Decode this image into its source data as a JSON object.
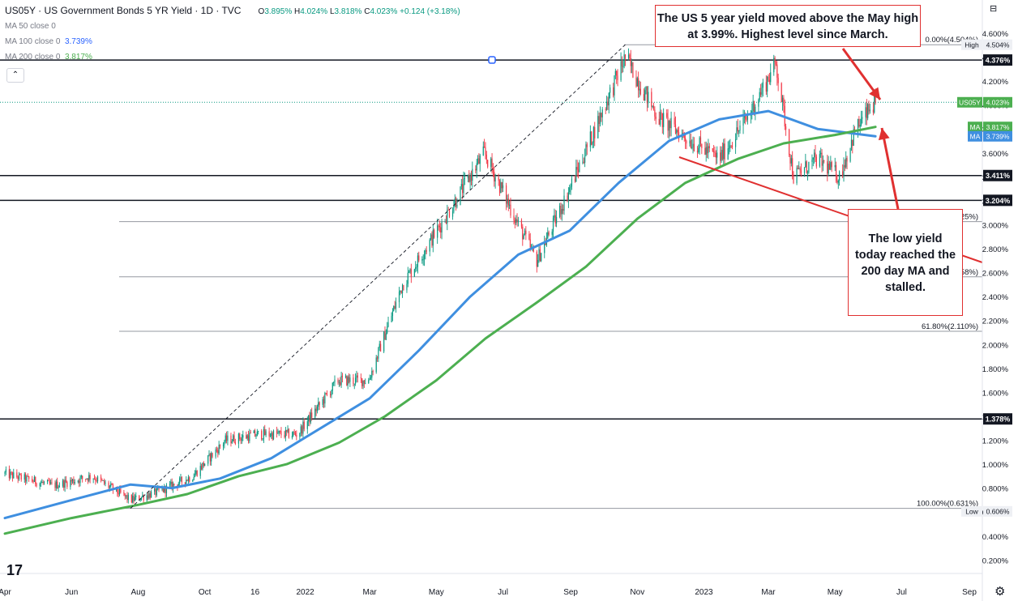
{
  "header": {
    "symbol_title": "US05Y · US Government Bonds 5 YR Yield · 1D · TVC",
    "ohlc": [
      {
        "key": "O",
        "value": "3.895%"
      },
      {
        "key": "H",
        "value": "4.024%"
      },
      {
        "key": "L",
        "value": "3.818%"
      },
      {
        "key": "C",
        "value": "4.023%"
      },
      {
        "key": "",
        "value": "+0.124 (+3.18%)"
      }
    ],
    "ma50_label": "MA 50 close 0",
    "ma100_label": "MA 100 close 0",
    "ma100_value": "3.739%",
    "ma200_label": "MA 200 close 0",
    "ma200_value": "3.817%"
  },
  "annotations": {
    "top_note": "The US 5 year yield moved above the May high at 3.99%. Highest level since March.",
    "bottom_note": "The low yield today reached the 200 day MA and stalled."
  },
  "colors": {
    "up": "#089981",
    "down": "#f23645",
    "ma100": "#3f8fe0",
    "ma200": "#4caf50",
    "annotation": "#e03030"
  },
  "icons": [
    "tradingview-logo-icon",
    "settings-gear-icon",
    "collapse-chevron-icon",
    "chart-menu-icon"
  ],
  "chart_data": {
    "type": "candlestick",
    "title": "US05Y · US Government Bonds 5 YR Yield · 1D · TVC",
    "ylim": [
      0.05,
      4.65
    ],
    "y_ticks": [
      "0.200%",
      "0.400%",
      "0.600%",
      "0.800%",
      "1.000%",
      "1.200%",
      "1.400%",
      "1.600%",
      "1.800%",
      "2.000%",
      "2.200%",
      "2.400%",
      "2.600%",
      "2.800%",
      "3.000%",
      "3.200%",
      "3.400%",
      "3.600%",
      "3.800%",
      "4.000%",
      "4.200%",
      "4.400%",
      "4.600%"
    ],
    "x_ticks": [
      "Apr",
      "Jun",
      "Aug",
      "Oct",
      "16",
      "2022",
      "Mar",
      "May",
      "Jul",
      "Sep",
      "Nov",
      "2023",
      "Mar",
      "May",
      "Jul",
      "Sep"
    ],
    "price_path": [
      {
        "date": "2021-04-01",
        "y": 0.92
      },
      {
        "date": "2021-05-15",
        "y": 0.82
      },
      {
        "date": "2021-06-20",
        "y": 0.9
      },
      {
        "date": "2021-07-25",
        "y": 0.7
      },
      {
        "date": "2021-08-20",
        "y": 0.77
      },
      {
        "date": "2021-09-20",
        "y": 0.9
      },
      {
        "date": "2021-10-20",
        "y": 1.2
      },
      {
        "date": "2021-11-20",
        "y": 1.25
      },
      {
        "date": "2021-12-25",
        "y": 1.25
      },
      {
        "date": "2022-01-31",
        "y": 1.7
      },
      {
        "date": "2022-02-28",
        "y": 1.7
      },
      {
        "date": "2022-03-31",
        "y": 2.5
      },
      {
        "date": "2022-05-05",
        "y": 3.0
      },
      {
        "date": "2022-06-14",
        "y": 3.6
      },
      {
        "date": "2022-07-15",
        "y": 3.0
      },
      {
        "date": "2022-08-01",
        "y": 2.7
      },
      {
        "date": "2022-08-31",
        "y": 3.3
      },
      {
        "date": "2022-10-21",
        "y": 4.4
      },
      {
        "date": "2022-11-20",
        "y": 3.9
      },
      {
        "date": "2022-12-20",
        "y": 3.7
      },
      {
        "date": "2023-01-15",
        "y": 3.55
      },
      {
        "date": "2023-02-10",
        "y": 3.9
      },
      {
        "date": "2023-03-08",
        "y": 4.35
      },
      {
        "date": "2023-03-24",
        "y": 3.4
      },
      {
        "date": "2023-04-15",
        "y": 3.55
      },
      {
        "date": "2023-05-05",
        "y": 3.4
      },
      {
        "date": "2023-05-20",
        "y": 3.8
      },
      {
        "date": "2023-06-07",
        "y": 4.023
      }
    ],
    "series": [
      {
        "name": "MA 100",
        "points": [
          {
            "date": "2021-04-01",
            "y": 0.55
          },
          {
            "date": "2021-06-01",
            "y": 0.7
          },
          {
            "date": "2021-07-25",
            "y": 0.83
          },
          {
            "date": "2021-09-01",
            "y": 0.8
          },
          {
            "date": "2021-10-15",
            "y": 0.88
          },
          {
            "date": "2021-12-01",
            "y": 1.05
          },
          {
            "date": "2022-01-15",
            "y": 1.3
          },
          {
            "date": "2022-03-01",
            "y": 1.55
          },
          {
            "date": "2022-04-15",
            "y": 1.95
          },
          {
            "date": "2022-06-01",
            "y": 2.4
          },
          {
            "date": "2022-07-15",
            "y": 2.75
          },
          {
            "date": "2022-08-31",
            "y": 2.95
          },
          {
            "date": "2022-10-15",
            "y": 3.35
          },
          {
            "date": "2022-11-30",
            "y": 3.7
          },
          {
            "date": "2023-01-15",
            "y": 3.88
          },
          {
            "date": "2023-03-01",
            "y": 3.95
          },
          {
            "date": "2023-04-15",
            "y": 3.8
          },
          {
            "date": "2023-06-07",
            "y": 3.739
          }
        ]
      },
      {
        "name": "MA 200",
        "points": [
          {
            "date": "2021-04-01",
            "y": 0.42
          },
          {
            "date": "2021-06-01",
            "y": 0.55
          },
          {
            "date": "2021-08-01",
            "y": 0.66
          },
          {
            "date": "2021-09-15",
            "y": 0.75
          },
          {
            "date": "2021-11-01",
            "y": 0.9
          },
          {
            "date": "2021-12-15",
            "y": 1.0
          },
          {
            "date": "2022-02-01",
            "y": 1.18
          },
          {
            "date": "2022-03-15",
            "y": 1.4
          },
          {
            "date": "2022-05-01",
            "y": 1.7
          },
          {
            "date": "2022-06-15",
            "y": 2.05
          },
          {
            "date": "2022-08-01",
            "y": 2.35
          },
          {
            "date": "2022-09-15",
            "y": 2.65
          },
          {
            "date": "2022-11-01",
            "y": 3.05
          },
          {
            "date": "2022-12-15",
            "y": 3.35
          },
          {
            "date": "2023-02-01",
            "y": 3.55
          },
          {
            "date": "2023-03-15",
            "y": 3.68
          },
          {
            "date": "2023-05-01",
            "y": 3.75
          },
          {
            "date": "2023-06-07",
            "y": 3.817
          }
        ]
      }
    ],
    "horizontal_levels": [
      {
        "y": 4.376,
        "label": "4.376%"
      },
      {
        "y": 3.411,
        "label": "3.411%"
      },
      {
        "y": 3.204,
        "label": "3.204%"
      },
      {
        "y": 1.378,
        "label": "1.378%"
      }
    ],
    "fib_levels": [
      {
        "y": 4.504,
        "label": "0.00%(4.504%)"
      },
      {
        "y": 3.026,
        "label": "25%)"
      },
      {
        "y": 2.565,
        "label": "58%)"
      },
      {
        "y": 2.11,
        "label": "61.80%(2.110%)"
      },
      {
        "y": 0.631,
        "label": "100.00%(0.631%)"
      }
    ],
    "price_badges": [
      {
        "label": "High",
        "value": "4.504%",
        "y": 4.504,
        "style": "plain"
      },
      {
        "label": "US05Y",
        "value": "4.023%",
        "y": 4.023,
        "style": "green"
      },
      {
        "label": "MA",
        "value": "3.817%",
        "y": 3.817,
        "style": "green"
      },
      {
        "label": "MA",
        "value": "3.739%",
        "y": 3.739,
        "style": "blue"
      },
      {
        "label": "Low",
        "value": "0.606%",
        "y": 0.606,
        "style": "plain"
      }
    ],
    "grid": false
  }
}
